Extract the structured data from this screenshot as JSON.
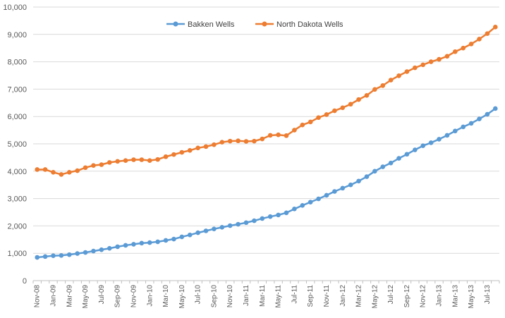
{
  "chart_data": {
    "type": "line",
    "title": "",
    "xlabel": "",
    "ylabel": "",
    "ylim": [
      0,
      10000
    ],
    "ytick_labels": [
      "0",
      "1,000",
      "2,000",
      "3,000",
      "4,000",
      "5,000",
      "6,000",
      "7,000",
      "8,000",
      "9,000",
      "10,000"
    ],
    "grid": "horizontal",
    "legend_position": "top-center",
    "categories": [
      "Nov-08",
      "Dec-08",
      "Jan-09",
      "Feb-09",
      "Mar-09",
      "Apr-09",
      "May-09",
      "Jun-09",
      "Jul-09",
      "Aug-09",
      "Sep-09",
      "Oct-09",
      "Nov-09",
      "Dec-09",
      "Jan-10",
      "Feb-10",
      "Mar-10",
      "Apr-10",
      "May-10",
      "Jun-10",
      "Jul-10",
      "Aug-10",
      "Sep-10",
      "Oct-10",
      "Nov-10",
      "Dec-10",
      "Jan-11",
      "Feb-11",
      "Mar-11",
      "Apr-11",
      "May-11",
      "Jun-11",
      "Jul-11",
      "Aug-11",
      "Sep-11",
      "Oct-11",
      "Nov-11",
      "Dec-11",
      "Jan-12",
      "Feb-12",
      "Mar-12",
      "Apr-12",
      "May-12",
      "Jun-12",
      "Jul-12",
      "Aug-12",
      "Sep-12",
      "Oct-12",
      "Nov-12",
      "Dec-12",
      "Jan-13",
      "Feb-13",
      "Mar-13",
      "Apr-13",
      "May-13",
      "Jun-13",
      "Jul-13",
      "Aug-13"
    ],
    "tick_labels": [
      "Nov-08",
      "Jan-09",
      "Mar-09",
      "May-09",
      "Jul-09",
      "Sep-09",
      "Nov-09",
      "Jan-10",
      "Mar-10",
      "May-10",
      "Jul-10",
      "Sep-10",
      "Nov-10",
      "Jan-11",
      "Mar-11",
      "May-11",
      "Jul-11",
      "Sep-11",
      "Nov-11",
      "Jan-12",
      "Mar-12",
      "May-12",
      "Jul-12",
      "Sep-12",
      "Nov-12",
      "Jan-13",
      "Mar-13",
      "May-13",
      "Jul-13"
    ],
    "series": [
      {
        "name": "Bakken Wells",
        "color": "#5B9BD5",
        "light_color": "#BDD7EE",
        "values": [
          850,
          880,
          910,
          920,
          950,
          990,
          1030,
          1080,
          1130,
          1180,
          1240,
          1290,
          1330,
          1370,
          1390,
          1420,
          1470,
          1520,
          1600,
          1670,
          1750,
          1820,
          1890,
          1950,
          2010,
          2060,
          2120,
          2190,
          2270,
          2340,
          2400,
          2480,
          2620,
          2750,
          2870,
          2990,
          3120,
          3260,
          3380,
          3500,
          3640,
          3800,
          4000,
          4160,
          4300,
          4470,
          4620,
          4780,
          4930,
          5040,
          5170,
          5310,
          5470,
          5620,
          5750,
          5910,
          6080,
          6290
        ]
      },
      {
        "name": "North Dakota Wells",
        "color": "#ED7D31",
        "light_color": "#F8CBAD",
        "values": [
          4060,
          4060,
          3960,
          3880,
          3960,
          4020,
          4130,
          4210,
          4240,
          4320,
          4360,
          4390,
          4420,
          4420,
          4390,
          4430,
          4530,
          4610,
          4690,
          4760,
          4850,
          4900,
          4970,
          5060,
          5100,
          5110,
          5090,
          5100,
          5180,
          5310,
          5330,
          5300,
          5500,
          5690,
          5800,
          5960,
          6070,
          6210,
          6320,
          6450,
          6620,
          6770,
          6990,
          7130,
          7330,
          7490,
          7640,
          7780,
          7890,
          8000,
          8090,
          8200,
          8370,
          8500,
          8650,
          8830,
          9030,
          9270
        ]
      }
    ]
  }
}
